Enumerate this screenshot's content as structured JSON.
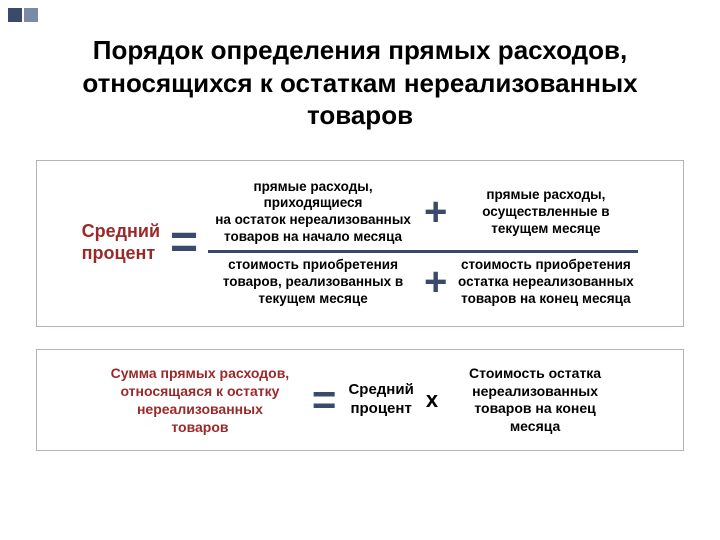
{
  "colors": {
    "title": "#000000",
    "accent_red": "#9a2a2a",
    "accent_blue": "#3a4a6a",
    "body_text": "#000000",
    "border": "#b0b0c0",
    "bg": "#ffffff"
  },
  "title": "Порядок определения прямых расходов, относящихся к остаткам нереализованных товаров",
  "formula1": {
    "left_label": "Средний\nпроцент",
    "equals": "=",
    "numerator": {
      "a": "прямые расходы, приходящиеся\nна остаток нереализованных\nтоваров на начало месяца",
      "op": "+",
      "b": "прямые расходы,\nосуществленные в\nтекущем месяце"
    },
    "denominator": {
      "a": "стоимость приобретения\nтоваров, реализованных в\nтекущем месяце",
      "op": "+",
      "b": "стоимость приобретения\nостатка нереализованных\nтоваров на конец месяца"
    }
  },
  "formula2": {
    "left": "Сумма прямых расходов,\nотносящаяся к остатку\nнереализованных\nтоваров",
    "equals": "=",
    "mid": "Средний\nпроцент",
    "times": "х",
    "right": "Стоимость остатка\nнереализованных\nтоваров на конец\nмесяца"
  },
  "typography": {
    "title_fontsize": 26,
    "label_fontsize": 18,
    "cell_fontsize": 13.5,
    "big_op_fontsize": 48,
    "plus_op_fontsize": 40
  }
}
